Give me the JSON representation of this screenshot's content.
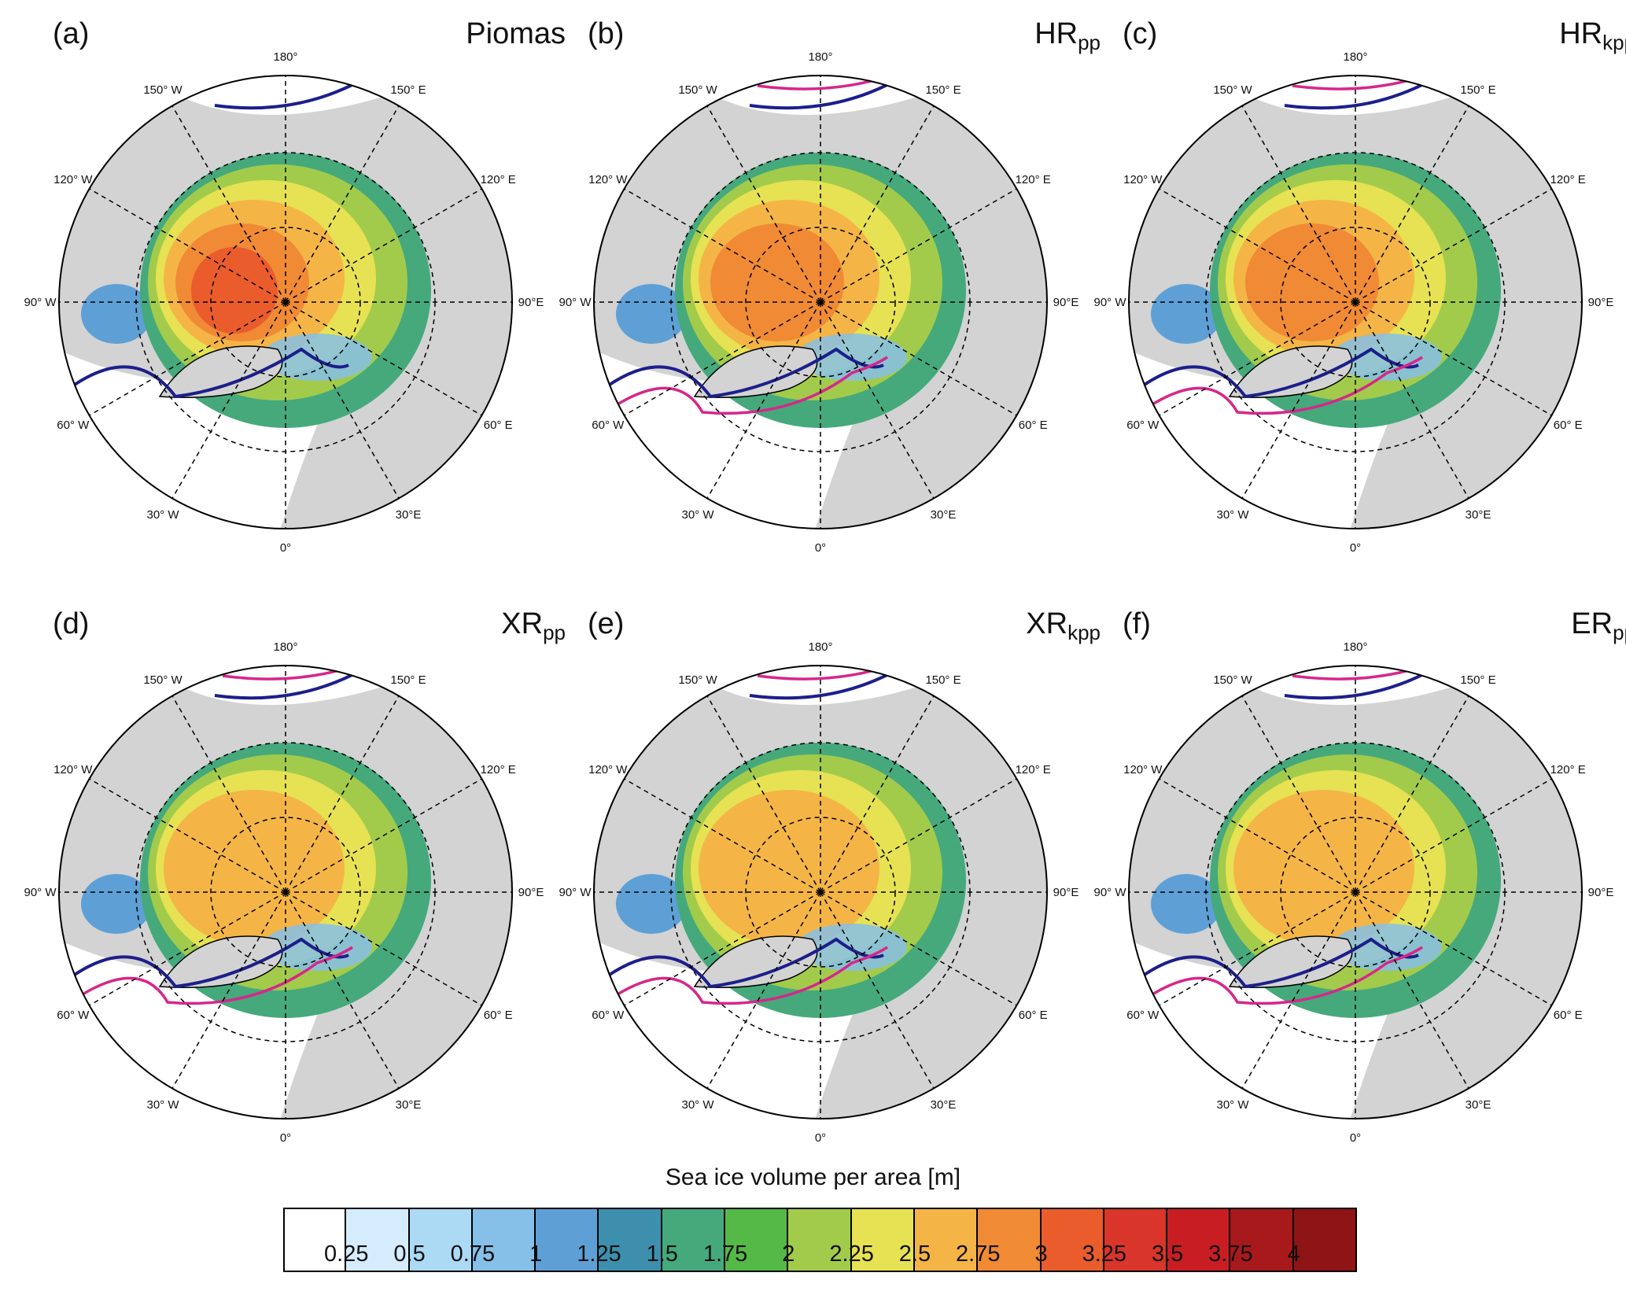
{
  "panels": [
    {
      "label": "(a)",
      "title": "Piomas",
      "sub": ""
    },
    {
      "label": "(b)",
      "title": "HR",
      "sub": "pp"
    },
    {
      "label": "(c)",
      "title": "HR",
      "sub": "kpp"
    },
    {
      "label": "(d)",
      "title": "XR",
      "sub": "pp"
    },
    {
      "label": "(e)",
      "title": "XR",
      "sub": "kpp"
    },
    {
      "label": "(f)",
      "title": "ER",
      "sub": "pp"
    }
  ],
  "lon_labels": [
    "180°",
    "150° E",
    "120° E",
    "90°E",
    "60° E",
    "30°E",
    "0°",
    "30° W",
    "60° W",
    "90° W",
    "120° W",
    "150° W"
  ],
  "colorbar": {
    "title": "Sea ice volume per area [m]",
    "ticks": [
      "0.25",
      "0.5",
      "0.75",
      "1",
      "1.25",
      "1.5",
      "1.75",
      "2",
      "2.25",
      "2.5",
      "2.75",
      "3",
      "3.25",
      "3.5",
      "3.75",
      "4"
    ],
    "colors": [
      "#ffffff",
      "#d4ecfb",
      "#acdaf5",
      "#86bfe8",
      "#5ea0d6",
      "#3e8fad",
      "#45a97c",
      "#55b948",
      "#a2cb4c",
      "#e6e253",
      "#f4b546",
      "#f08a35",
      "#ea5c2c",
      "#d9352a",
      "#c81e23",
      "#a8191c",
      "#8f1416"
    ]
  },
  "map_colors": {
    "land": "#d3d3d3",
    "ocean": "#ffffff",
    "edge_obs": "#1c1f8a",
    "edge_model": "#d6278a"
  }
}
